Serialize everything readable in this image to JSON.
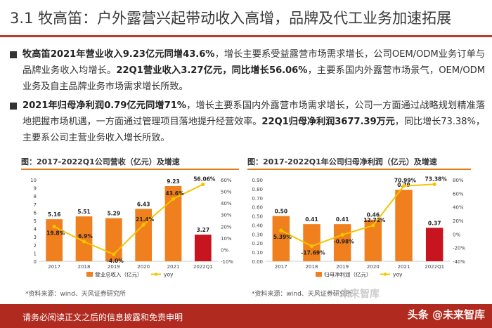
{
  "page": {
    "title": "3.1 牧高笛：户外露营兴起带动收入高增，品牌及代工业务加速拓展",
    "bullets": [
      {
        "segments": [
          {
            "bold": true,
            "text": "牧高笛2021年营业收入9.23亿元同增43.6%"
          },
          {
            "bold": false,
            "text": "，增长主要系受益露营市场需求增长，公司OEM/ODM业务订单与品牌业务收入均增长。"
          },
          {
            "bold": true,
            "text": "22Q1营业收入3.27亿元，同比增长56.06%"
          },
          {
            "bold": false,
            "text": "，主要系国内外露营市场景气，OEM/ODM业务及自主品牌业务市场需求增长所致。"
          }
        ]
      },
      {
        "segments": [
          {
            "bold": true,
            "text": "2021年归母净利润0.79亿元同增71%"
          },
          {
            "bold": false,
            "text": "，增长主要系国内外露营市场需求增长，公司一方面通过战略规划精准落地把握市场机遇，一方面通过管理项目落地提升经营效率。"
          },
          {
            "bold": true,
            "text": "22Q1归母净利润3677.39万元"
          },
          {
            "bold": false,
            "text": "，同比增长73.38%，主要系公司主营业务收入增长所致。"
          }
        ]
      }
    ],
    "footer": {
      "disclaimer": "请务必阅读正文之后的信息披露和免责申明",
      "watermark": "头条 @未来智库"
    },
    "watermark_logo": "未来智库"
  },
  "colors": {
    "bar": "#f07f1d",
    "bar_highlight": "#c8141e",
    "line": "#f5c400",
    "accent_rule": "#e07a1a",
    "footer": "#b02a1f"
  },
  "chart_data": [
    {
      "type": "bar",
      "title": "图：2017-2022Q1公司营收（亿元）及增速",
      "categories": [
        "2017",
        "2018",
        "2019",
        "2020",
        "2021",
        "2022Q1"
      ],
      "series": [
        {
          "name": "营业总收入（亿元）",
          "axis": "left",
          "values": [
            5.16,
            5.51,
            5.29,
            6.43,
            9.23,
            3.27
          ],
          "labels": [
            "5.16",
            "5.51",
            "5.29",
            "6.43",
            "9.23",
            "3.27"
          ],
          "highlight_index": 5
        },
        {
          "name": "yoy",
          "type": "line",
          "axis": "right",
          "values": [
            19.8,
            6.9,
            -4.0,
            21.4,
            43.6,
            56.06
          ],
          "labels": [
            "19.8%",
            "6.9%",
            "-4.0%",
            "21.4%",
            "43.6%",
            "56.06%"
          ]
        }
      ],
      "ylim": [
        0,
        10
      ],
      "yticks": [
        0,
        1,
        2,
        3,
        4,
        5,
        6,
        7,
        8,
        9,
        10
      ],
      "y2lim": [
        -10,
        60
      ],
      "y2ticks": [
        "60%",
        "50%",
        "40%",
        "30%",
        "20%",
        "10%",
        "0%",
        "-10%"
      ],
      "legend": "bottom",
      "source": "*资料来源：wind、天风证券研究所"
    },
    {
      "type": "bar",
      "title": "图：2017-2022Q1年公司归母净利润（亿元）及增速",
      "categories": [
        "2017",
        "2018",
        "2019",
        "2020",
        "2021",
        "2022Q1"
      ],
      "series": [
        {
          "name": "归母净利润（亿元）",
          "axis": "left",
          "values": [
            0.5,
            0.41,
            0.41,
            0.46,
            0.79,
            0.37
          ],
          "labels": [
            "0.50",
            "0.41",
            "0.41",
            "0.46",
            "0.79",
            "0.37"
          ],
          "highlight_index": 5
        },
        {
          "name": "yoy",
          "type": "line",
          "axis": "right",
          "values": [
            5.39,
            -17.69,
            -0.98,
            12.72,
            70.99,
            73.38
          ],
          "labels": [
            "5.39%",
            "-17.69%",
            "-0.98%",
            "12.72%",
            "70.99%",
            "73.38%"
          ]
        }
      ],
      "ylim": [
        0,
        0.9
      ],
      "yticks": [
        "0.90",
        "0.80",
        "0.70",
        "0.60",
        "0.50",
        "0.40",
        "0.30",
        "0.20",
        "0.10",
        "0.00"
      ],
      "y2lim": [
        -40,
        80
      ],
      "y2ticks": [
        "80%",
        "60%",
        "40%",
        "20%",
        "0%",
        "-20%",
        "-40%"
      ],
      "legend": "bottom",
      "source": "*资料来源：wind、天风证券研究所"
    }
  ]
}
